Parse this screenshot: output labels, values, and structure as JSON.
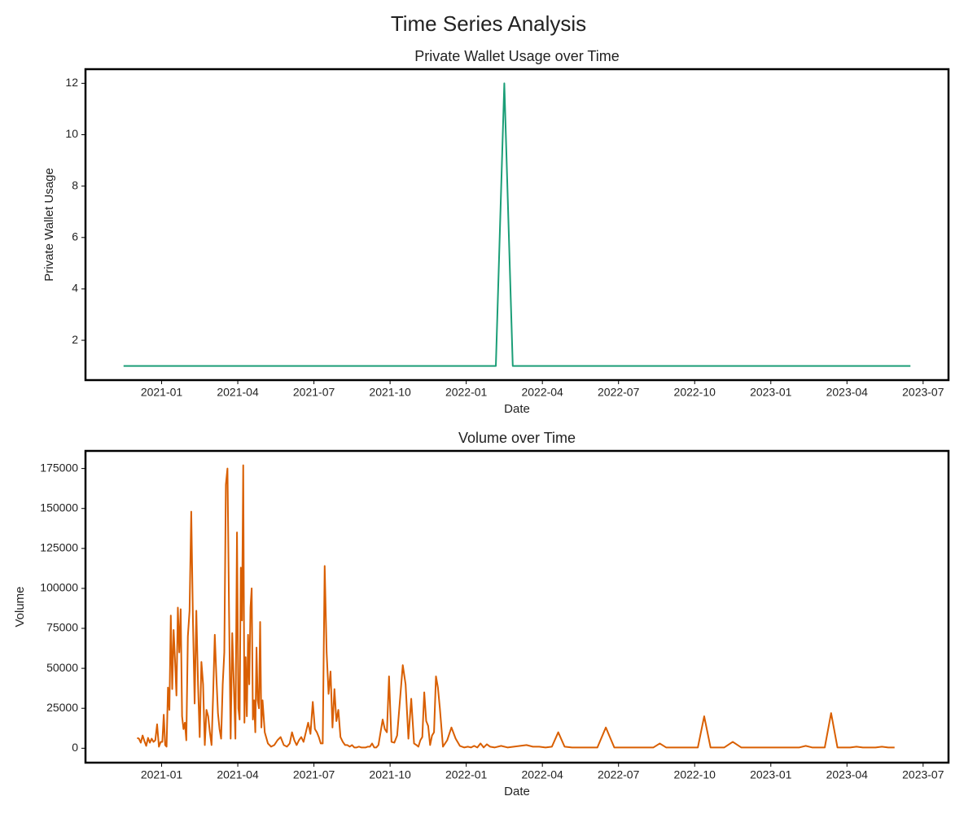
{
  "title": "Time Series Analysis",
  "chart_data": [
    {
      "type": "line",
      "title": "Private Wallet Usage over Time",
      "x_label": "Date",
      "y_label": "Private Wallet Usage",
      "color": "#1b9e77",
      "x": [
        "2020-11",
        "2022-02",
        "2022-02",
        "2022-02",
        "2023-06"
      ],
      "values": [
        1,
        1,
        12,
        1,
        1
      ],
      "xlim": [
        "2020-10",
        "2023-08"
      ],
      "xticks": [
        "2021-01",
        "2021-04",
        "2021-07",
        "2021-10",
        "2022-01",
        "2022-04",
        "2022-07",
        "2022-10",
        "2023-01",
        "2023-04",
        "2023-07"
      ],
      "ylim": [
        0.45,
        12.55
      ],
      "yticks": [
        2,
        4,
        6,
        8,
        10,
        12
      ]
    },
    {
      "type": "line",
      "title": "Volume over Time",
      "x_label": "Date",
      "y_label": "Volume",
      "color": "#d95f02",
      "x": [
        "2020-12",
        "2020-12",
        "2020-12",
        "2020-12",
        "2020-12",
        "2020-12",
        "2020-12",
        "2020-12",
        "2020-12",
        "2020-12",
        "2020-12",
        "2020-12",
        "2020-12",
        "2020-12",
        "2021-01",
        "2021-01",
        "2021-01",
        "2021-01",
        "2021-01",
        "2021-01",
        "2021-01",
        "2021-01",
        "2021-01",
        "2021-01",
        "2021-01",
        "2021-01",
        "2021-01",
        "2021-01",
        "2021-01",
        "2021-01",
        "2021-01",
        "2021-01",
        "2021-02",
        "2021-02",
        "2021-02",
        "2021-02",
        "2021-02",
        "2021-02",
        "2021-02",
        "2021-02",
        "2021-02",
        "2021-02",
        "2021-02",
        "2021-02",
        "2021-02",
        "2021-02",
        "2021-02",
        "2021-03",
        "2021-03",
        "2021-03",
        "2021-03",
        "2021-03",
        "2021-03",
        "2021-03",
        "2021-03",
        "2021-03",
        "2021-03",
        "2021-03",
        "2021-03",
        "2021-03",
        "2021-03",
        "2021-03",
        "2021-03",
        "2021-04",
        "2021-04",
        "2021-04",
        "2021-04",
        "2021-04",
        "2021-04",
        "2021-04",
        "2021-04",
        "2021-04",
        "2021-04",
        "2021-04",
        "2021-04",
        "2021-04",
        "2021-04",
        "2021-04",
        "2021-04",
        "2021-04",
        "2021-04",
        "2021-04",
        "2021-04",
        "2021-04",
        "2021-05",
        "2021-05",
        "2021-05",
        "2021-05",
        "2021-05",
        "2021-05",
        "2021-05",
        "2021-05",
        "2021-06",
        "2021-06",
        "2021-06",
        "2021-06",
        "2021-06",
        "2021-06",
        "2021-06",
        "2021-06",
        "2021-06",
        "2021-06",
        "2021-06",
        "2021-07",
        "2021-07",
        "2021-07",
        "2021-07",
        "2021-07",
        "2021-07",
        "2021-07",
        "2021-07",
        "2021-07",
        "2021-07",
        "2021-07",
        "2021-07",
        "2021-07",
        "2021-08",
        "2021-08",
        "2021-08",
        "2021-08",
        "2021-08",
        "2021-08",
        "2021-08",
        "2021-08",
        "2021-08",
        "2021-08",
        "2021-08",
        "2021-09",
        "2021-09",
        "2021-09",
        "2021-09",
        "2021-09",
        "2021-09",
        "2021-09",
        "2021-09",
        "2021-09",
        "2021-09",
        "2021-09",
        "2021-09",
        "2021-10",
        "2021-10",
        "2021-10",
        "2021-10",
        "2021-10",
        "2021-10",
        "2021-10",
        "2021-10",
        "2021-10",
        "2021-11",
        "2021-11",
        "2021-11",
        "2021-11",
        "2021-11",
        "2021-11",
        "2021-11",
        "2021-11",
        "2021-11",
        "2021-11",
        "2021-11",
        "2021-11",
        "2021-11",
        "2021-12",
        "2021-12",
        "2021-12",
        "2021-12",
        "2021-12",
        "2021-12",
        "2022-01",
        "2022-01",
        "2022-01",
        "2022-01",
        "2022-01",
        "2022-01",
        "2022-01",
        "2022-01",
        "2022-02",
        "2022-02",
        "2022-02",
        "2022-02",
        "2022-03",
        "2022-03",
        "2022-03",
        "2022-03",
        "2022-04",
        "2022-04",
        "2022-04",
        "2022-04",
        "2022-05",
        "2022-05",
        "2022-05",
        "2022-06",
        "2022-06",
        "2022-06",
        "2022-07",
        "2022-07",
        "2022-07",
        "2022-08",
        "2022-08",
        "2022-08",
        "2022-08",
        "2022-09",
        "2022-09",
        "2022-09",
        "2022-09",
        "2022-10",
        "2022-10",
        "2022-10",
        "2022-10",
        "2022-11",
        "2022-11",
        "2022-11",
        "2022-12",
        "2022-12",
        "2023-01",
        "2023-01",
        "2023-02",
        "2023-02",
        "2023-02",
        "2023-02",
        "2023-03",
        "2023-03",
        "2023-03",
        "2023-03",
        "2023-04",
        "2023-04",
        "2023-04",
        "2023-04",
        "2023-05",
        "2023-05",
        "2023-05",
        "2023-05"
      ],
      "values": [
        6500,
        6000,
        3500,
        8000,
        4500,
        1500,
        6500,
        3500,
        6000,
        4000,
        5000,
        15000,
        1000,
        4000,
        4000,
        21000,
        2000,
        1000,
        38000,
        24000,
        83000,
        37000,
        74000,
        55000,
        33000,
        88000,
        60000,
        87000,
        20000,
        12000,
        16000,
        5000,
        70000,
        86000,
        148000,
        80000,
        28000,
        86000,
        40000,
        7000,
        54000,
        40000,
        2000,
        24000,
        20000,
        10000,
        2000,
        35000,
        71000,
        45000,
        22000,
        12000,
        6000,
        40000,
        60000,
        165000,
        175000,
        85000,
        6000,
        72000,
        40000,
        6000,
        135000,
        25000,
        18000,
        113000,
        80000,
        177000,
        16000,
        57000,
        20000,
        71000,
        40000,
        88000,
        100000,
        18000,
        30000,
        10000,
        63000,
        30000,
        25000,
        79000,
        13000,
        30000,
        10000,
        3000,
        1000,
        2000,
        5000,
        7000,
        2000,
        1000,
        3000,
        10000,
        5000,
        2000,
        5000,
        7000,
        4000,
        10000,
        16000,
        9000,
        29000,
        12000,
        10000,
        7000,
        3000,
        3000,
        114000,
        60000,
        34000,
        48000,
        13000,
        37000,
        17000,
        24000,
        7000,
        4000,
        2000,
        2000,
        1000,
        2000,
        500,
        500,
        1000,
        500,
        500,
        500,
        1000,
        1000,
        3000,
        500,
        500,
        2000,
        10000,
        18000,
        12000,
        10000,
        45000,
        4000,
        3500,
        8000,
        30000,
        52000,
        40000,
        6000,
        31000,
        3000,
        2000,
        1000,
        5000,
        7000,
        35000,
        17000,
        14000,
        2000,
        8000,
        10000,
        45000,
        38000,
        25000,
        1000,
        5000,
        13000,
        6000,
        1500,
        500,
        1000,
        500,
        1500,
        500,
        3000,
        500,
        2500,
        1000,
        500,
        1500,
        500,
        1000,
        1500,
        2000,
        1000,
        1000,
        500,
        1000,
        10000,
        1000,
        500,
        500,
        500,
        500,
        13000,
        500,
        500,
        500,
        500,
        500,
        500,
        3000,
        500,
        500,
        500,
        500,
        500,
        500,
        20000,
        500,
        500,
        500,
        4000,
        500,
        500,
        500,
        500,
        500,
        500,
        1500,
        500,
        500,
        500,
        22000,
        500,
        500,
        500,
        1000,
        500,
        500,
        500,
        1000,
        500,
        500
      ],
      "xlim": [
        "2020-10",
        "2023-08"
      ],
      "xticks": [
        "2021-01",
        "2021-04",
        "2021-07",
        "2021-10",
        "2022-01",
        "2022-04",
        "2022-07",
        "2022-10",
        "2023-01",
        "2023-04",
        "2023-07"
      ],
      "ylim": [
        -9000,
        186000
      ],
      "yticks": [
        0,
        25000,
        50000,
        75000,
        100000,
        125000,
        150000,
        175000
      ]
    }
  ]
}
